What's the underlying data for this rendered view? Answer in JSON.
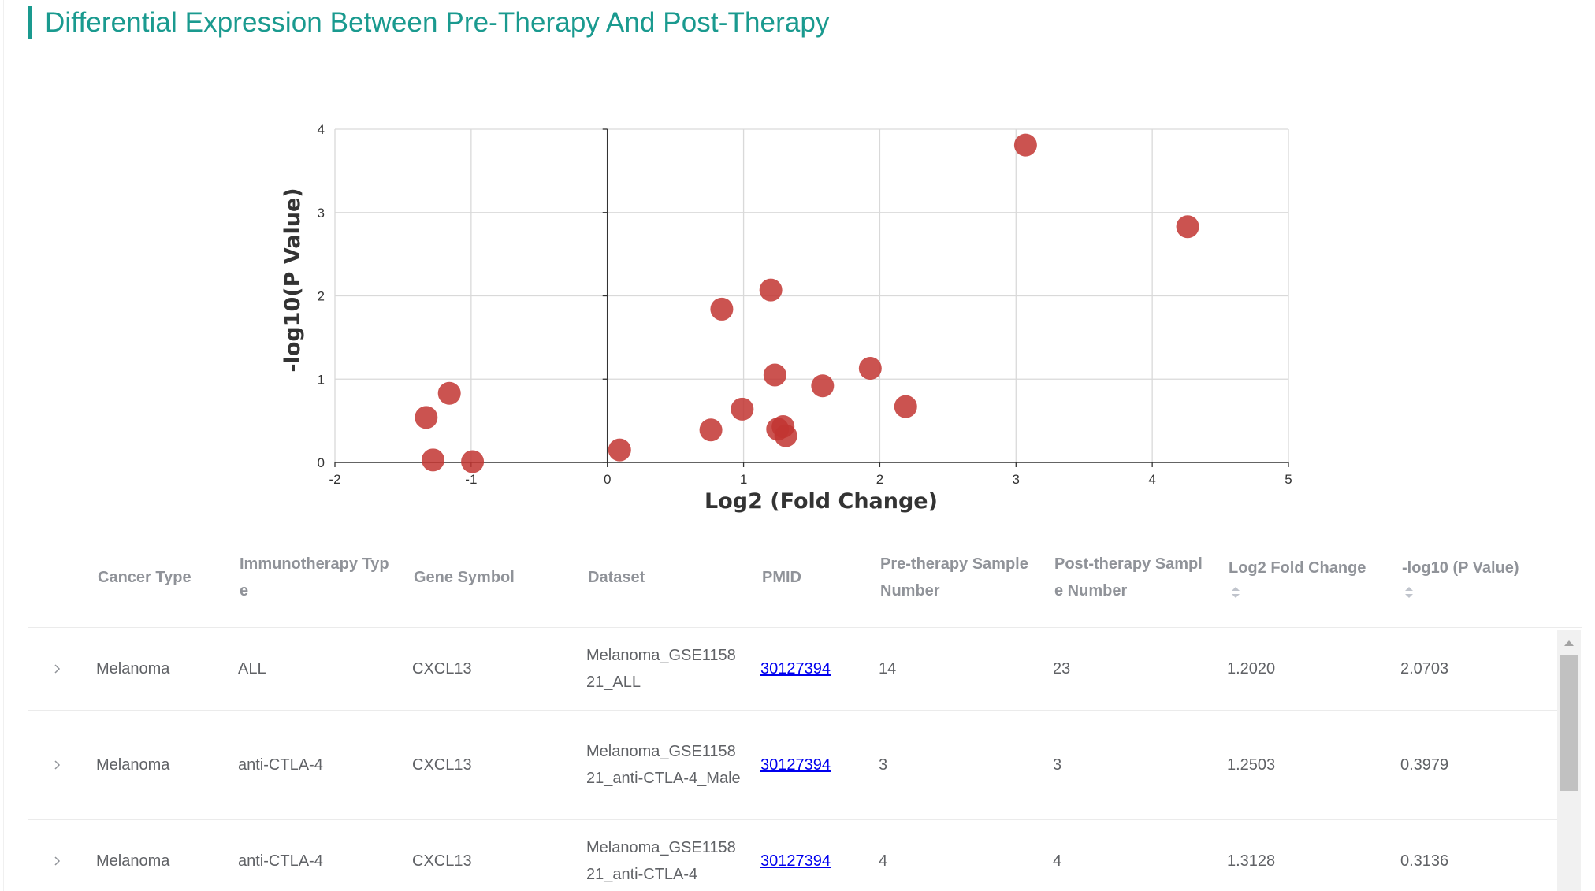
{
  "title": "Differential Expression Between Pre-Therapy And Post-Therapy",
  "colors": {
    "accent": "#1a9a8f",
    "point": "#c23531",
    "link": "#0000ee",
    "header_text": "#909399",
    "cell_text": "#606266"
  },
  "chart_data": {
    "type": "scatter",
    "xlabel": "Log2 (Fold Change)",
    "ylabel": "-log10(P Value)",
    "xlim": [
      -2,
      5
    ],
    "ylim": [
      0,
      4
    ],
    "x_ticks": [
      "-2",
      "-1",
      "0",
      "1",
      "2",
      "3",
      "4",
      "5"
    ],
    "y_ticks": [
      "0",
      "1",
      "2",
      "3",
      "4"
    ],
    "grid": true,
    "points": [
      {
        "x": -1.33,
        "y": 0.54
      },
      {
        "x": -1.16,
        "y": 0.83
      },
      {
        "x": -1.28,
        "y": 0.03
      },
      {
        "x": -0.99,
        "y": 0.01
      },
      {
        "x": 0.09,
        "y": 0.15
      },
      {
        "x": 0.76,
        "y": 0.39
      },
      {
        "x": 0.84,
        "y": 1.84
      },
      {
        "x": 0.99,
        "y": 0.64
      },
      {
        "x": 1.2,
        "y": 2.07
      },
      {
        "x": 1.23,
        "y": 1.05
      },
      {
        "x": 1.25,
        "y": 0.4
      },
      {
        "x": 1.31,
        "y": 0.32
      },
      {
        "x": 1.29,
        "y": 0.43
      },
      {
        "x": 1.58,
        "y": 0.92
      },
      {
        "x": 1.93,
        "y": 1.13
      },
      {
        "x": 2.19,
        "y": 0.67
      },
      {
        "x": 3.07,
        "y": 3.81
      },
      {
        "x": 4.26,
        "y": 2.83
      }
    ]
  },
  "table": {
    "headers": [
      "Cancer Type",
      "Immunotherapy Type",
      "Gene Symbol",
      "Dataset",
      "PMID",
      "Pre-therapy Sample Number",
      "Post-therapy Sample Number",
      "Log2 Fold Change",
      "-log10 (P Value)"
    ],
    "rows": [
      {
        "cancer_type": "Melanoma",
        "immunotherapy_type": "ALL",
        "gene_symbol": "CXCL13",
        "dataset": "Melanoma_GSE115821_ALL",
        "pmid": "30127394",
        "pre_n": "14",
        "post_n": "23",
        "log2fc": "1.2020",
        "neglog10p": "2.0703"
      },
      {
        "cancer_type": "Melanoma",
        "immunotherapy_type": "anti-CTLA-4",
        "gene_symbol": "CXCL13",
        "dataset": "Melanoma_GSE115821_anti-CTLA-4_Male",
        "pmid": "30127394",
        "pre_n": "3",
        "post_n": "3",
        "log2fc": "1.2503",
        "neglog10p": "0.3979"
      },
      {
        "cancer_type": "Melanoma",
        "immunotherapy_type": "anti-CTLA-4",
        "gene_symbol": "CXCL13",
        "dataset": "Melanoma_GSE115821_anti-CTLA-4",
        "pmid": "30127394",
        "pre_n": "4",
        "post_n": "4",
        "log2fc": "1.3128",
        "neglog10p": "0.3136"
      }
    ]
  }
}
